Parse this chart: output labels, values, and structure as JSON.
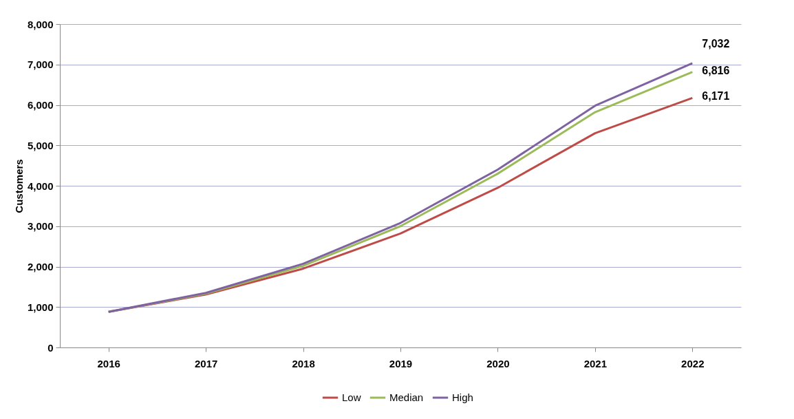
{
  "chart_data": {
    "type": "line",
    "ylabel": "Customers",
    "categories": [
      "2016",
      "2017",
      "2018",
      "2019",
      "2020",
      "2021",
      "2022"
    ],
    "series": [
      {
        "name": "Low",
        "color": "#be4b48",
        "values": [
          880,
          1310,
          1950,
          2820,
          3950,
          5300,
          6171
        ],
        "value_labels": [
          null,
          null,
          null,
          null,
          null,
          null,
          "6,171"
        ]
      },
      {
        "name": "Median",
        "color": "#9bbb59",
        "values": [
          880,
          1330,
          2020,
          3000,
          4300,
          5820,
          6816
        ],
        "value_labels": [
          null,
          null,
          null,
          null,
          null,
          null,
          "6,816"
        ]
      },
      {
        "name": "High",
        "color": "#7e62a1",
        "values": [
          880,
          1350,
          2070,
          3080,
          4400,
          5980,
          7032
        ],
        "value_labels": [
          null,
          null,
          null,
          null,
          null,
          null,
          "7,032"
        ]
      }
    ],
    "ylim": [
      0,
      8000
    ],
    "yticks": [
      0,
      {
        "value": 1000,
        "label": "1,000"
      },
      {
        "value": 2000,
        "label": "2,000"
      },
      {
        "value": 3000,
        "label": "3,000"
      },
      {
        "value": 4000,
        "label": "4,000"
      },
      {
        "value": 5000,
        "label": "5,000"
      },
      {
        "value": 6000,
        "label": "6,000"
      },
      {
        "value": 7000,
        "label": "7,000"
      },
      {
        "value": 8000,
        "label": "8,000"
      }
    ],
    "grid": "y",
    "legend": "bottom",
    "marker": "none",
    "line_style": "solid"
  }
}
